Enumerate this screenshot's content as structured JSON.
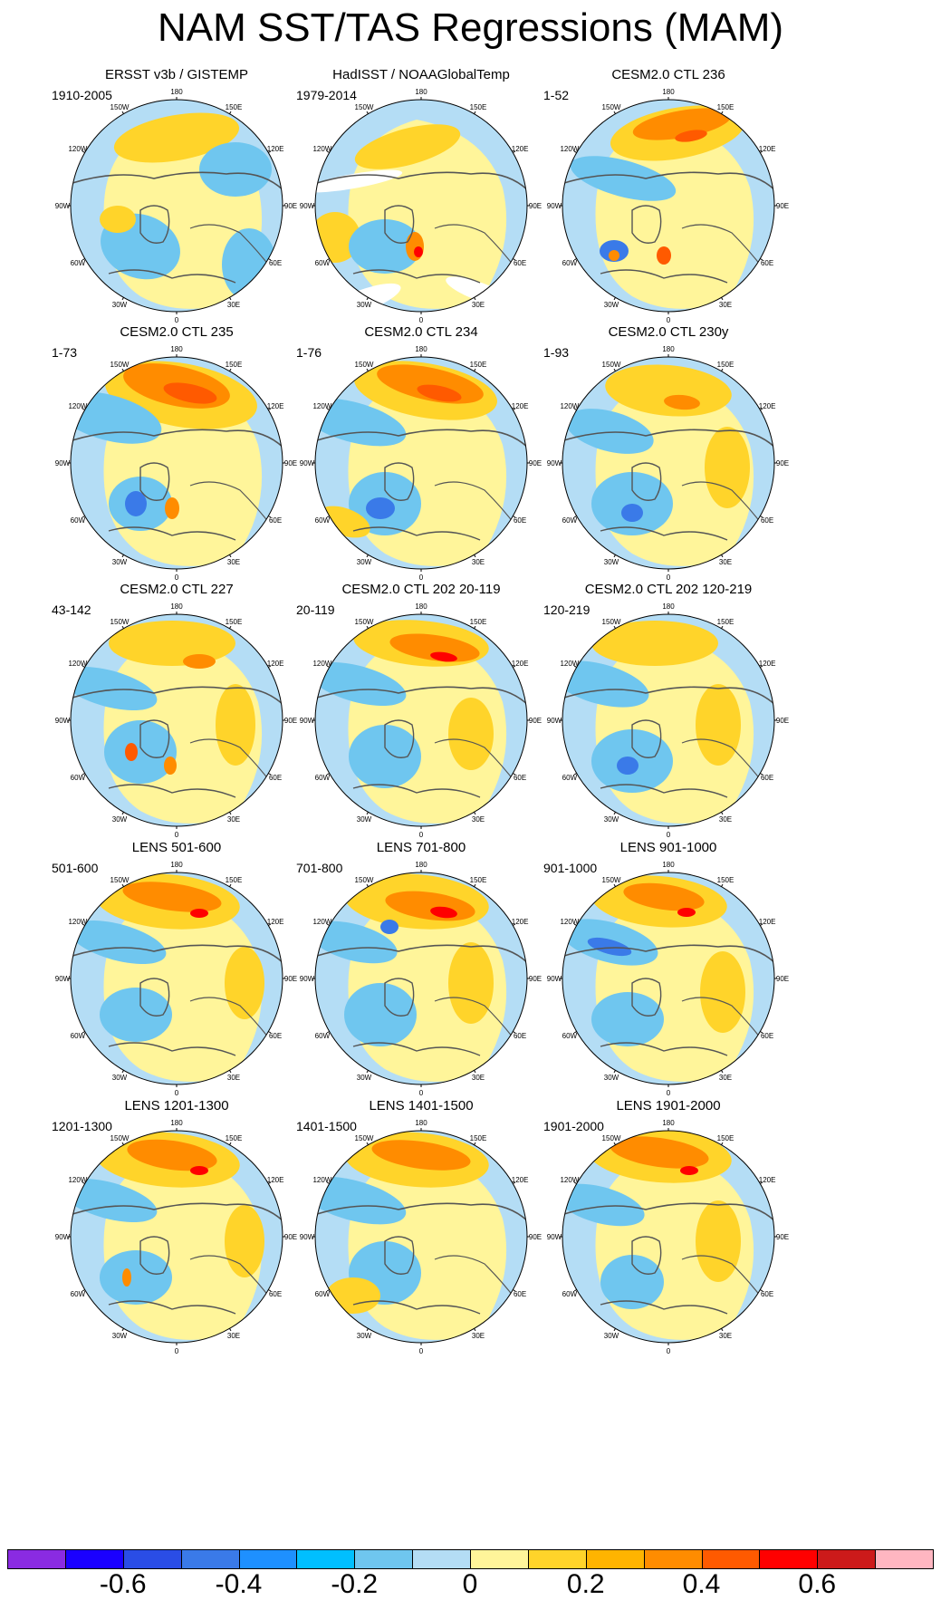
{
  "title": "NAM SST/TAS Regressions (MAM)",
  "panels": [
    {
      "title": "ERSST v3b / GISTEMP",
      "period": "1910-2005"
    },
    {
      "title": "HadISST / NOAAGlobalTemp",
      "period": "1979-2014"
    },
    {
      "title": "CESM2.0 CTL 236",
      "period": "1-52"
    },
    {
      "title": "CESM2.0 CTL 235",
      "period": "1-73"
    },
    {
      "title": "CESM2.0 CTL 234",
      "period": "1-76"
    },
    {
      "title": "CESM2.0 CTL 230y",
      "period": "1-93"
    },
    {
      "title": "CESM2.0 CTL 227",
      "period": "43-142"
    },
    {
      "title": "CESM2.0 CTL 202 20-119",
      "period": "20-119"
    },
    {
      "title": "CESM2.0 CTL 202 120-219",
      "period": "120-219"
    },
    {
      "title": "LENS 501-600",
      "period": "501-600"
    },
    {
      "title": "LENS 701-800",
      "period": "701-800"
    },
    {
      "title": "LENS 901-1000",
      "period": "901-1000"
    },
    {
      "title": "LENS 1201-1300",
      "period": "1201-1300"
    },
    {
      "title": "LENS 1401-1500",
      "period": "1401-1500"
    },
    {
      "title": "LENS 1901-2000",
      "period": "1901-2000"
    }
  ],
  "longitude_labels": [
    "180",
    "150E",
    "120E",
    "90E",
    "60E",
    "30E",
    "0",
    "30W",
    "60W",
    "90W",
    "120W",
    "150W"
  ],
  "colorbar": {
    "colors": [
      "#8a2be2",
      "#1a00ff",
      "#2a4de6",
      "#3a7ae8",
      "#1e90ff",
      "#00bfff",
      "#6fc6ef",
      "#b4ddf5",
      "#fff59a",
      "#ffd42a",
      "#ffb400",
      "#ff8c00",
      "#ff5a00",
      "#ff0000",
      "#cc1a1a",
      "#ffb6c1"
    ],
    "tick_labels": [
      "-0.6",
      "-0.4",
      "-0.2",
      "0",
      "0.2",
      "0.4",
      "0.6"
    ]
  },
  "colors": {
    "ocean": "#b4ddf5",
    "land_base": "#fff59a",
    "coast": "#555555",
    "missing": "#ffffff"
  }
}
